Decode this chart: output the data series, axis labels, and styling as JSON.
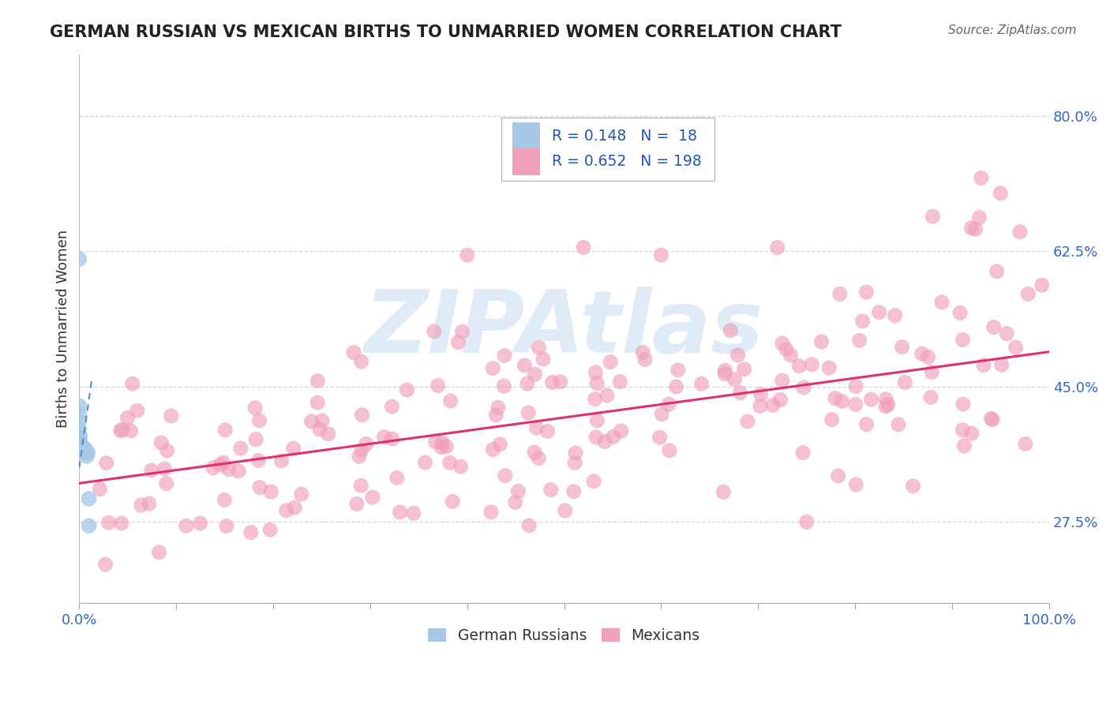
{
  "title": "GERMAN RUSSIAN VS MEXICAN BIRTHS TO UNMARRIED WOMEN CORRELATION CHART",
  "source": "Source: ZipAtlas.com",
  "ylabel": "Births to Unmarried Women",
  "watermark": "ZIPAtlas",
  "bg_color": "#ffffff",
  "grid_color": "#cccccc",
  "blue_color": "#a8c8e8",
  "pink_color": "#f0a0b8",
  "blue_line_color": "#5588cc",
  "pink_line_color": "#e03070",
  "title_color": "#222222",
  "source_color": "#666666",
  "legend_r_color": "#2255bb",
  "axis_tick_color": "#3366cc",
  "R_blue": 0.148,
  "N_blue": 18,
  "R_pink": 0.652,
  "N_pink": 198,
  "xlim": [
    0.0,
    1.0
  ],
  "ylim_min": 0.17,
  "ylim_max": 0.88,
  "yticks": [
    0.275,
    0.45,
    0.625,
    0.8
  ],
  "ytick_labels": [
    "27.5%",
    "45.0%",
    "62.5%",
    "80.0%"
  ],
  "blue_x": [
    0.0,
    0.0,
    0.0,
    0.0,
    0.0,
    0.0,
    0.001,
    0.001,
    0.002,
    0.003,
    0.004,
    0.005,
    0.006,
    0.007,
    0.008,
    0.009,
    0.01,
    0.01
  ],
  "blue_y": [
    0.615,
    0.425,
    0.415,
    0.405,
    0.395,
    0.385,
    0.385,
    0.375,
    0.375,
    0.37,
    0.37,
    0.365,
    0.37,
    0.365,
    0.36,
    0.365,
    0.305,
    0.27
  ],
  "blue_line_x": [
    0.0,
    0.013
  ],
  "blue_line_y": [
    0.345,
    0.46
  ],
  "pink_line_x": [
    0.0,
    1.0
  ],
  "pink_line_y": [
    0.325,
    0.495
  ]
}
